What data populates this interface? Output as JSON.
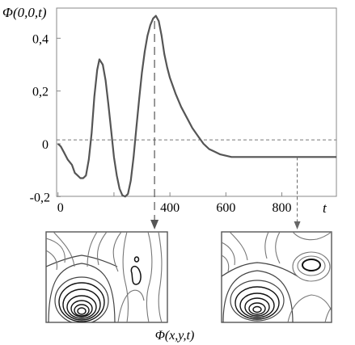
{
  "chart_data": {
    "type": "line",
    "ylabel": "Φ(0,0,t)",
    "xlabel": "t",
    "xlim": [
      -5,
      995
    ],
    "ylim": [
      -0.2,
      0.5
    ],
    "x_ticks": [
      0,
      200,
      400,
      600,
      800
    ],
    "x_tick_labels": [
      "0",
      "",
      "400",
      "600",
      "800"
    ],
    "y_ticks": [
      0.4,
      0.2,
      0,
      -0.2
    ],
    "y_tick_labels": [
      "0,4",
      "0,2",
      "0",
      "-0,2"
    ],
    "grid": false,
    "reference_line_y": 0.015,
    "series": [
      {
        "x": [
          0,
          10,
          20,
          35,
          50,
          60,
          70,
          80,
          90,
          100,
          110,
          120,
          130,
          140,
          148,
          160,
          170,
          180,
          190,
          200,
          210,
          220,
          230,
          240,
          250,
          260,
          270,
          280,
          290,
          300,
          310,
          320,
          330,
          340,
          350,
          360,
          370,
          380,
          390,
          400,
          420,
          440,
          460,
          480,
          500,
          520,
          540,
          560,
          580,
          600,
          620,
          650,
          700,
          800,
          900,
          995
        ],
        "y": [
          0.0,
          -0.01,
          -0.03,
          -0.06,
          -0.08,
          -0.11,
          -0.12,
          -0.13,
          -0.13,
          -0.12,
          -0.06,
          0.04,
          0.18,
          0.28,
          0.32,
          0.3,
          0.24,
          0.15,
          0.05,
          -0.05,
          -0.12,
          -0.17,
          -0.195,
          -0.2,
          -0.19,
          -0.14,
          -0.05,
          0.06,
          0.17,
          0.27,
          0.35,
          0.41,
          0.45,
          0.475,
          0.485,
          0.465,
          0.41,
          0.34,
          0.29,
          0.25,
          0.19,
          0.14,
          0.1,
          0.06,
          0.03,
          0.0,
          -0.02,
          -0.03,
          -0.04,
          -0.045,
          -0.05,
          -0.05,
          -0.05,
          -0.05,
          -0.05,
          -0.05
        ]
      }
    ],
    "annotations": [
      {
        "t": 345,
        "style": "dashed",
        "target": "left-contour-panel"
      },
      {
        "t": 855,
        "style": "dotted",
        "target": "right-contour-panel"
      }
    ],
    "inset_label": "Φ(x,y,t)"
  }
}
